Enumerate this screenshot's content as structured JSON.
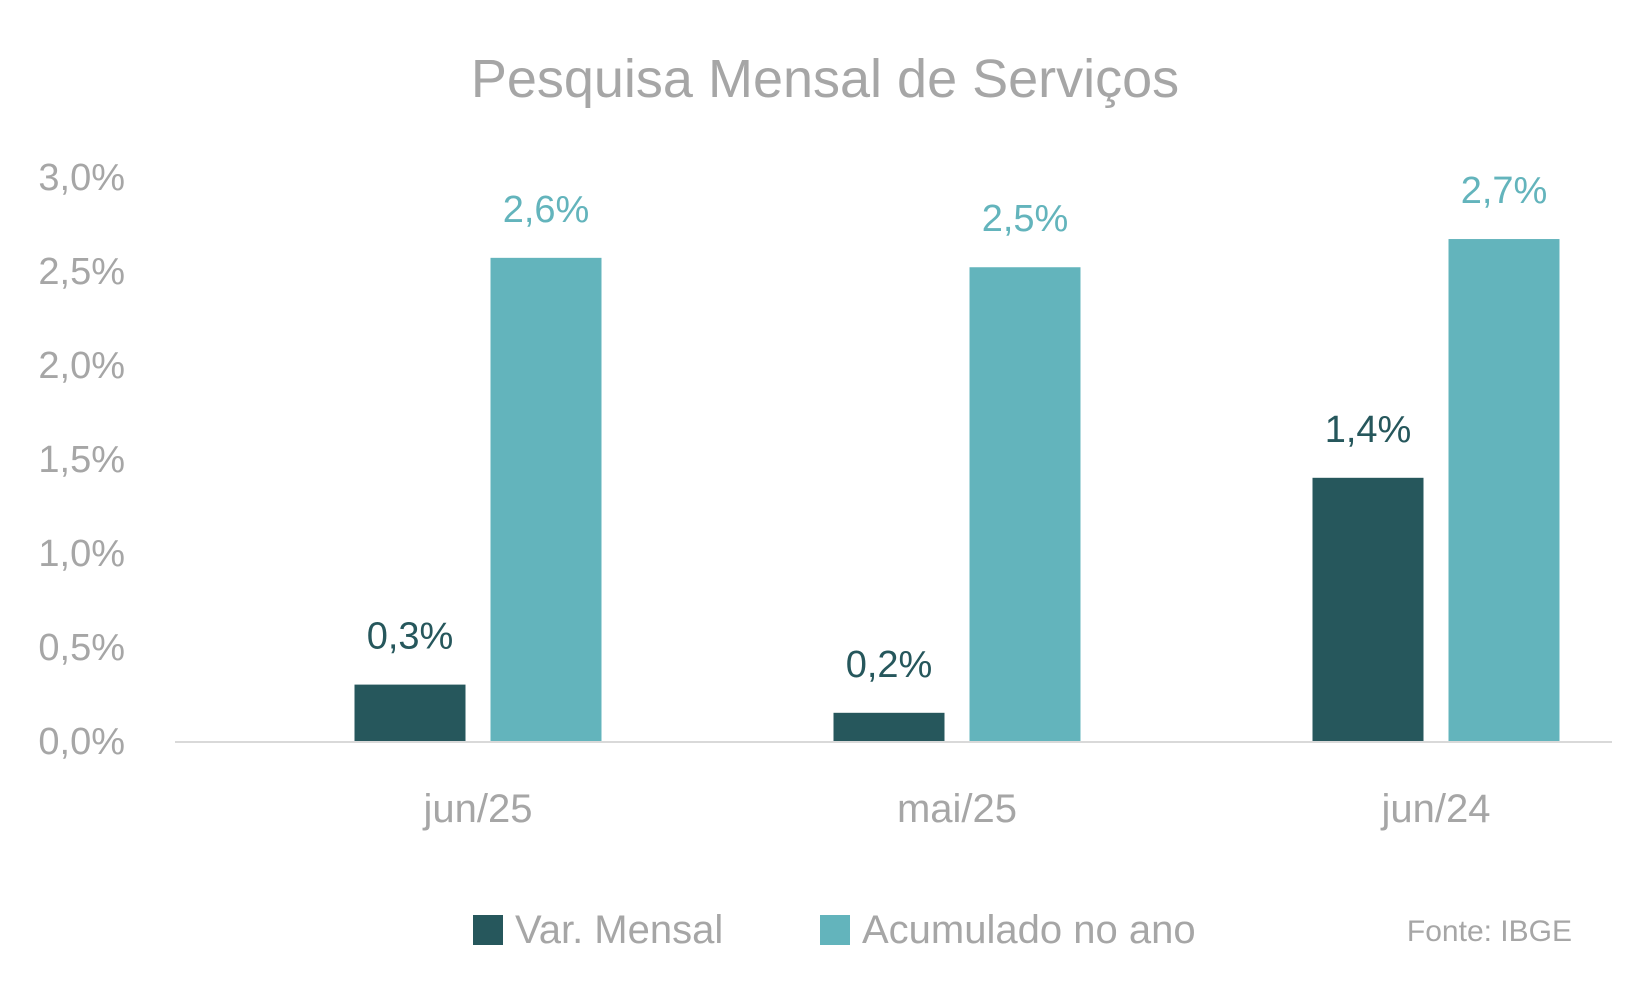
{
  "chart_data": {
    "type": "bar",
    "title": "Pesquisa Mensal de Serviços",
    "categories": [
      "jun/25",
      "mai/25",
      "jun/24"
    ],
    "series": [
      {
        "name": "Var. Mensal",
        "color": "#26575c",
        "values": [
          0.3,
          0.15,
          1.4
        ],
        "labels": [
          "0,3%",
          "0,2%",
          "1,4%"
        ]
      },
      {
        "name": "Acumulado no ano",
        "color": "#63b4bc",
        "values": [
          2.57,
          2.52,
          2.67
        ],
        "labels": [
          "2,6%",
          "2,5%",
          "2,7%"
        ]
      }
    ],
    "ylim": [
      0,
      3.0
    ],
    "yticks": [
      0,
      0.5,
      1.0,
      1.5,
      2.0,
      2.5,
      3.0
    ],
    "ytick_labels": [
      "0,0%",
      "0,5%",
      "1,0%",
      "1,5%",
      "2,0%",
      "2,5%",
      "3,0%"
    ],
    "grid": false,
    "legend_position": "bottom",
    "source": "Fonte: IBGE",
    "axis_color": "#d9d9d9",
    "text_color": "#a6a6a6"
  }
}
